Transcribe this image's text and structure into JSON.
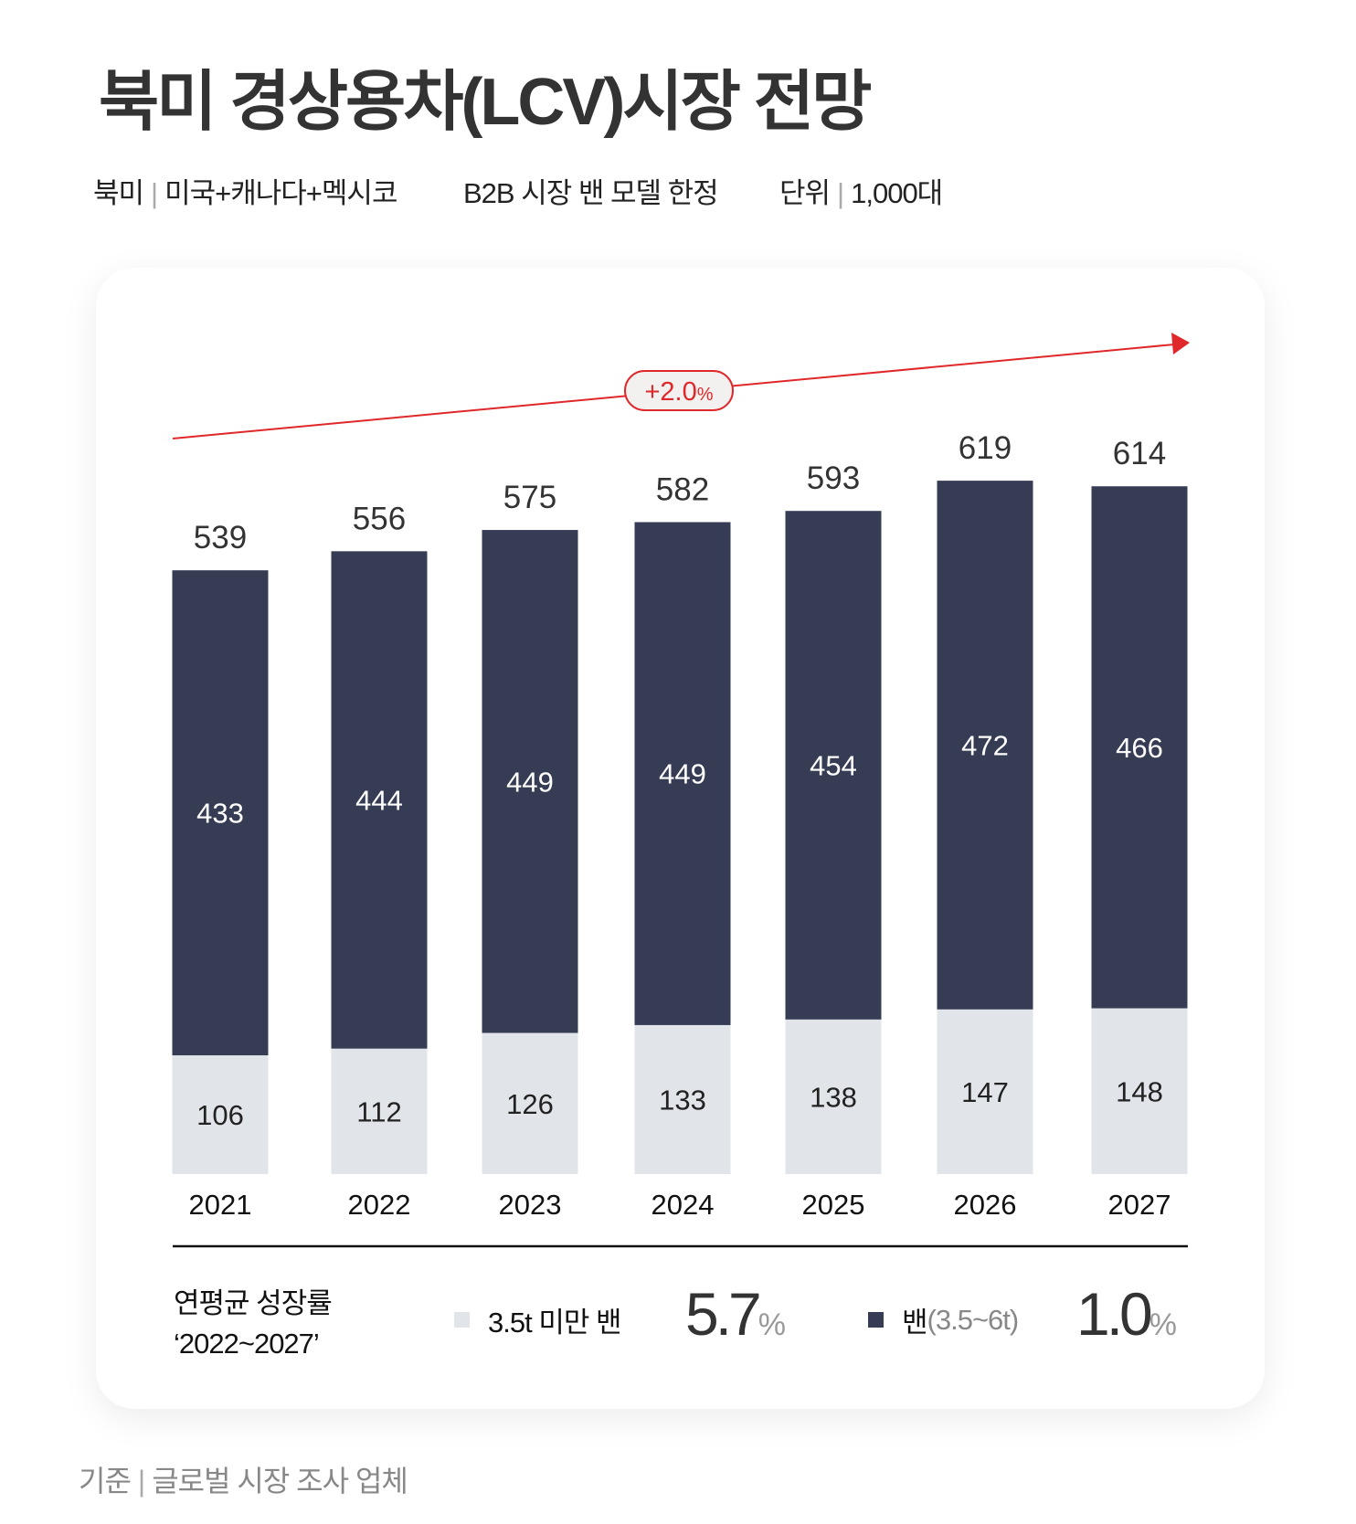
{
  "title": "북미 경상용차(LCV)시장 전망",
  "subtitle": {
    "region_label": "북미",
    "region_value": "미국+캐나다+멕시코",
    "scope": "B2B 시장 밴 모델 한정",
    "unit_label": "단위",
    "unit_value": "1,000대"
  },
  "colors": {
    "dark": "#353c54",
    "light": "#e1e4e9",
    "trend": "#e0282a",
    "badge_bg": "#f3f0f0"
  },
  "chart_data": {
    "type": "bar",
    "stacked": true,
    "categories": [
      "2021",
      "2022",
      "2023",
      "2024",
      "2025",
      "2026",
      "2027"
    ],
    "series": [
      {
        "name": "3.5t 미만 밴",
        "values": [
          106,
          112,
          126,
          133,
          138,
          147,
          148
        ],
        "color": "#e1e4e9"
      },
      {
        "name": "밴(3.5~6t)",
        "values": [
          433,
          444,
          449,
          449,
          454,
          472,
          466
        ],
        "color": "#353c54"
      }
    ],
    "totals": [
      539,
      556,
      575,
      582,
      593,
      619,
      614
    ],
    "trend_label": "+2.0",
    "trend_unit": "%",
    "grid": false
  },
  "cagr": {
    "title_line1": "연평균 성장률",
    "title_line2": "‘2022~2027’",
    "items": [
      {
        "label": "3.5t 미만 밴",
        "label_extra": "",
        "value": "5.7",
        "unit": "%"
      },
      {
        "label": "밴",
        "label_extra": "(3.5~6t)",
        "value": "1.0",
        "unit": "%"
      }
    ]
  },
  "footer": {
    "label": "기준",
    "value": "글로벌 시장 조사 업체"
  }
}
